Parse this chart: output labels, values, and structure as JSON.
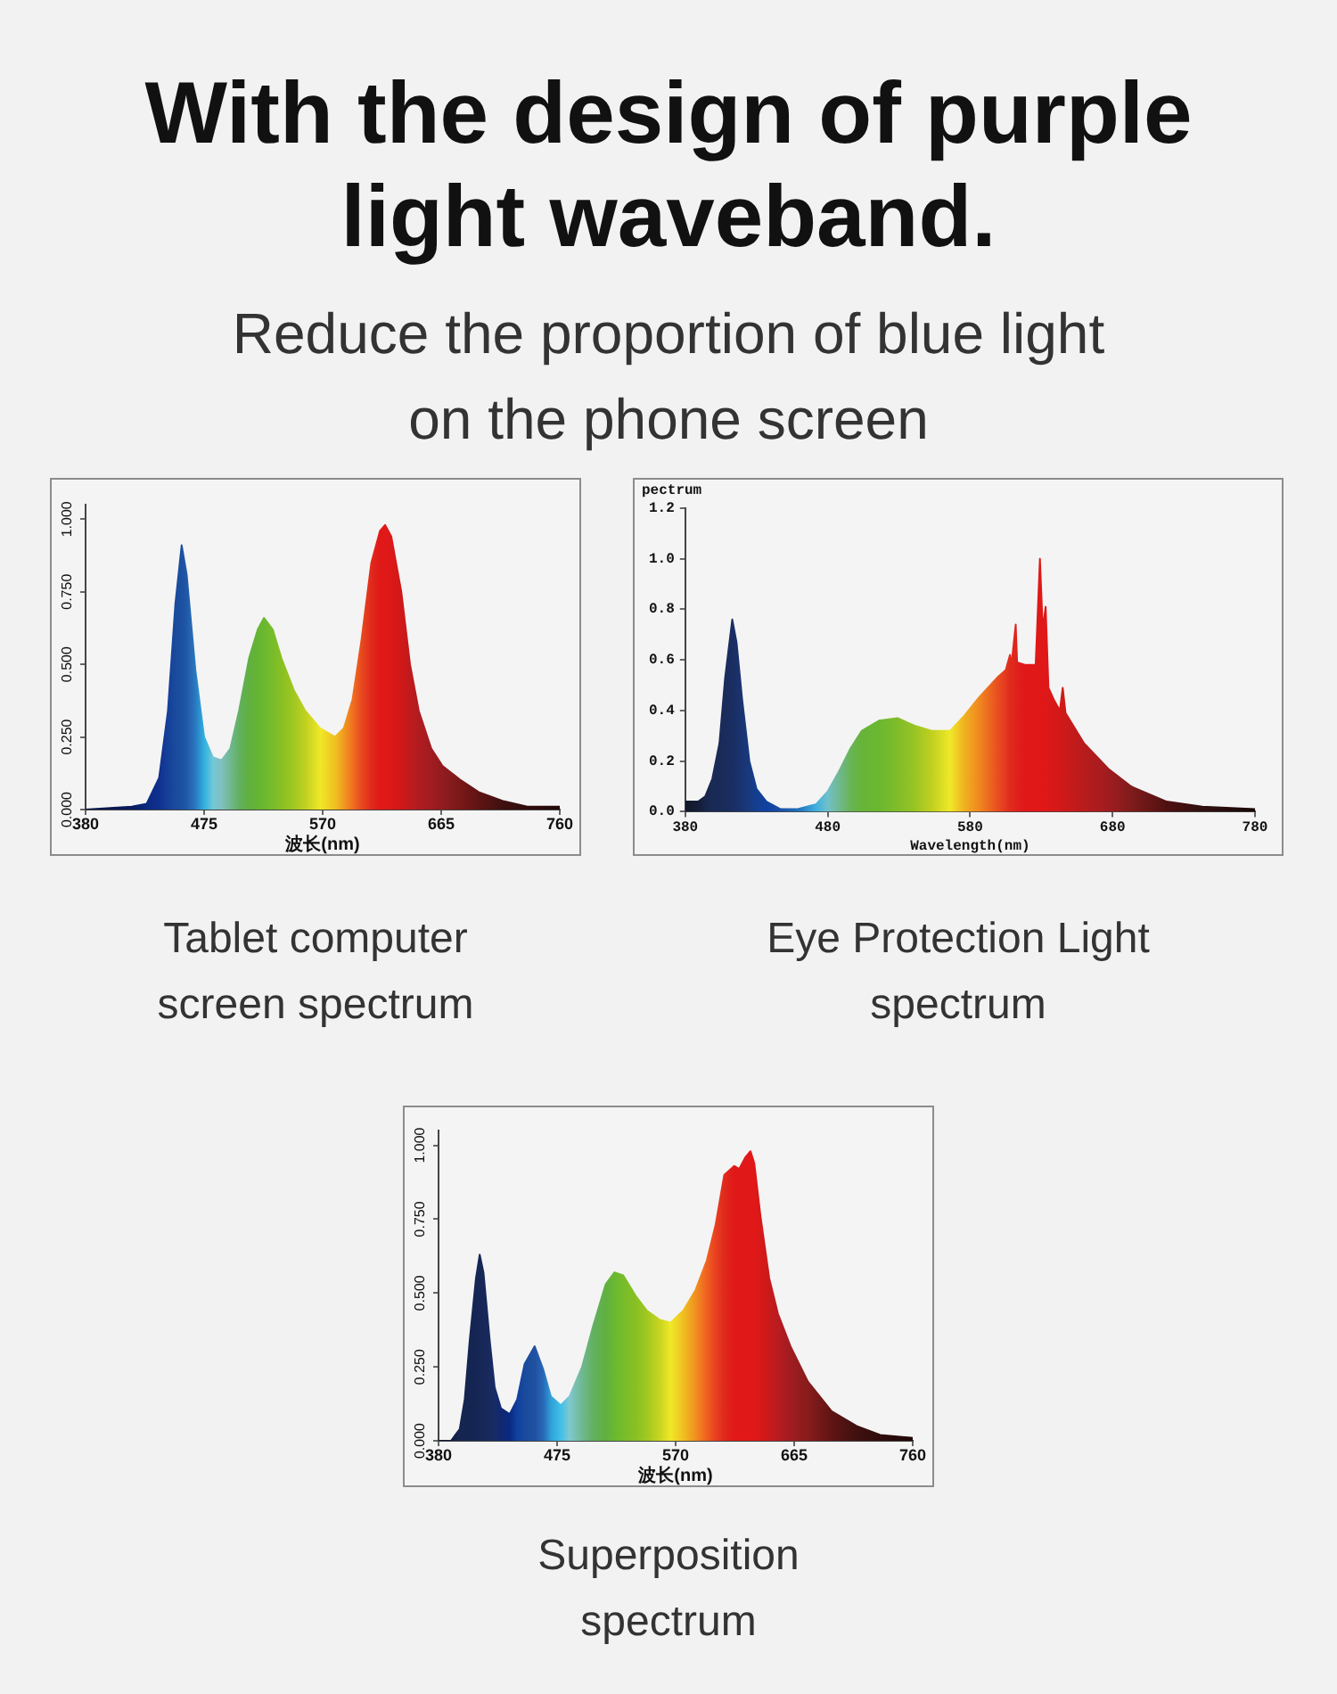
{
  "chart_data": [
    {
      "type": "other",
      "title": "With the design of purple light waveband.",
      "subtitle": "Reduce the proportion of blue light on the phone screen"
    },
    {
      "type": "area",
      "title": "Tablet computer screen spectrum",
      "xlabel": "波长(nm)",
      "x": [
        380,
        417,
        429,
        439,
        446,
        452,
        457,
        461,
        468,
        475,
        482,
        489,
        496,
        503,
        511,
        518,
        523,
        530,
        537,
        547,
        556,
        568,
        580,
        587,
        594,
        601,
        609,
        616,
        620,
        625,
        633,
        640,
        647,
        657,
        666,
        681,
        695,
        714,
        734,
        760
      ],
      "values": [
        0,
        0.01,
        0.02,
        0.11,
        0.34,
        0.71,
        0.91,
        0.81,
        0.48,
        0.25,
        0.18,
        0.17,
        0.21,
        0.34,
        0.52,
        0.62,
        0.66,
        0.62,
        0.52,
        0.41,
        0.34,
        0.28,
        0.25,
        0.28,
        0.38,
        0.58,
        0.85,
        0.96,
        0.98,
        0.94,
        0.75,
        0.5,
        0.34,
        0.21,
        0.15,
        0.1,
        0.06,
        0.03,
        0.01,
        0.01
      ],
      "colors": [
        "#0a1540",
        "#0a1a60",
        "#0a2a80",
        "#10308f",
        "#15409a",
        "#1a4a9c",
        "#1c50a0",
        "#2058a8",
        "#2a78c0",
        "#30b0e0",
        "#70c8d8",
        "#80c0c0",
        "#70b890",
        "#62b060",
        "#60b040",
        "#66b432",
        "#6ab830",
        "#78bc2a",
        "#88c024",
        "#a0c820",
        "#c0d020",
        "#f0e828",
        "#f0c020",
        "#f09a20",
        "#f07020",
        "#e84a20",
        "#e02a1c",
        "#e01818",
        "#e01818",
        "#dc1818",
        "#d01818",
        "#c01a1c",
        "#b01c20",
        "#a01c20",
        "#901c20",
        "#781818",
        "#601414",
        "#401010",
        "#300c0c",
        "#200808"
      ],
      "xlim": [
        380,
        760
      ],
      "xticks": [
        380,
        475,
        570,
        665,
        760
      ],
      "ylim": [
        0,
        1.05
      ],
      "yticks": [
        {
          "value": 0,
          "label": "0.000"
        },
        {
          "value": 0.25,
          "label": "0.250"
        },
        {
          "value": 0.5,
          "label": "0.500"
        },
        {
          "value": 0.75,
          "label": "0.750"
        },
        {
          "value": 1,
          "label": "1.000"
        }
      ]
    },
    {
      "type": "area",
      "title": "Eye Protection Light spectrum",
      "xlabel": "Wavelength(nm)",
      "ylabel": "pectrum",
      "x": [
        380,
        389,
        394,
        399,
        404,
        408,
        413,
        416,
        420,
        425,
        430,
        437,
        447,
        459,
        472,
        480,
        488,
        496,
        504,
        516,
        529,
        541,
        553,
        566,
        576,
        586,
        599,
        605,
        608,
        609,
        612,
        613,
        619,
        626,
        627,
        629,
        631,
        633,
        635,
        639,
        643,
        645,
        647,
        660,
        677,
        693,
        718,
        743,
        780
      ],
      "values": [
        0.04,
        0.04,
        0.06,
        0.13,
        0.27,
        0.53,
        0.76,
        0.67,
        0.44,
        0.2,
        0.09,
        0.04,
        0.01,
        0.01,
        0.03,
        0.08,
        0.16,
        0.25,
        0.32,
        0.36,
        0.37,
        0.34,
        0.32,
        0.32,
        0.38,
        0.45,
        0.53,
        0.56,
        0.62,
        0.58,
        0.74,
        0.59,
        0.58,
        0.58,
        0.72,
        1.0,
        0.72,
        0.81,
        0.49,
        0.44,
        0.4,
        0.49,
        0.39,
        0.27,
        0.17,
        0.1,
        0.04,
        0.02,
        0.01
      ],
      "colors": [
        "#101828",
        "#141e38",
        "#18244a",
        "#1a2a55",
        "#1a2a58",
        "#1a2c5c",
        "#1a2e62",
        "#1a3068",
        "#1a3472",
        "#183a80",
        "#143e90",
        "#1040a0",
        "#1a50a8",
        "#2070b8",
        "#40b0e0",
        "#70c0c8",
        "#70b890",
        "#68b458",
        "#66b438",
        "#6ab830",
        "#80bc2a",
        "#98c424",
        "#c0d020",
        "#f0e828",
        "#f0b020",
        "#f08a20",
        "#e85020",
        "#e43820",
        "#e02a1c",
        "#e02a1c",
        "#e0241c",
        "#e0201c",
        "#e01818",
        "#e01818",
        "#e01818",
        "#e01818",
        "#e01818",
        "#e01818",
        "#dc1818",
        "#d81818",
        "#d41818",
        "#d01818",
        "#cc1a1a",
        "#b81c1c",
        "#a01c20",
        "#801c1c",
        "#501010",
        "#301010",
        "#180808"
      ],
      "xlim": [
        380,
        780
      ],
      "xticks": [
        380,
        480,
        580,
        680,
        780
      ],
      "ylim": [
        0,
        1.2
      ],
      "yticks": [
        {
          "value": 0,
          "label": "0.0"
        },
        0.2,
        0.4,
        0.6,
        0.8,
        {
          "value": 1,
          "label": "1.0"
        },
        1.2
      ]
    },
    {
      "type": "area",
      "title": "Superposition spectrum",
      "xlabel": "波长(nm)",
      "x": [
        380,
        390,
        397,
        401,
        405,
        410,
        413,
        416,
        421,
        425,
        430,
        437,
        443,
        449,
        457,
        464,
        470,
        478,
        485,
        495,
        504,
        514,
        521,
        528,
        538,
        547,
        557,
        566,
        576,
        586,
        595,
        602,
        609,
        617,
        621,
        626,
        630,
        633,
        638,
        645,
        652,
        662,
        676,
        695,
        715,
        734,
        760
      ],
      "values": [
        0,
        0,
        0.04,
        0.14,
        0.34,
        0.55,
        0.63,
        0.57,
        0.34,
        0.18,
        0.11,
        0.09,
        0.14,
        0.26,
        0.32,
        0.24,
        0.15,
        0.12,
        0.15,
        0.25,
        0.39,
        0.53,
        0.57,
        0.56,
        0.49,
        0.44,
        0.41,
        0.4,
        0.44,
        0.51,
        0.61,
        0.73,
        0.9,
        0.93,
        0.92,
        0.96,
        0.98,
        0.94,
        0.76,
        0.55,
        0.43,
        0.32,
        0.2,
        0.1,
        0.05,
        0.02,
        0.01
      ],
      "colors": [
        "#0a1530",
        "#101e40",
        "#152550",
        "#152550",
        "#152552",
        "#162654",
        "#162656",
        "#172858",
        "#182a5e",
        "#182c66",
        "#102870",
        "#0a2a80",
        "#1040a0",
        "#1a4a9c",
        "#2050a0",
        "#2868b8",
        "#30a0d8",
        "#40c0e8",
        "#80c8d0",
        "#70b890",
        "#62b060",
        "#60b040",
        "#6ab830",
        "#78bc2a",
        "#88c024",
        "#a0c820",
        "#c8d420",
        "#f0e828",
        "#f0c020",
        "#f09020",
        "#f06020",
        "#e84020",
        "#e02a1c",
        "#e01818",
        "#e01818",
        "#e01818",
        "#e01818",
        "#e01818",
        "#d81818",
        "#c81a1c",
        "#b81c20",
        "#a01c20",
        "#881c1c",
        "#601414",
        "#401010",
        "#300c0c",
        "#200808"
      ],
      "xlim": [
        380,
        760
      ],
      "xticks": [
        380,
        475,
        570,
        665,
        760
      ],
      "ylim": [
        0,
        1.05
      ],
      "yticks": [
        {
          "value": 0,
          "label": "0.000"
        },
        {
          "value": 0.25,
          "label": "0.250"
        },
        {
          "value": 0.5,
          "label": "0.500"
        },
        {
          "value": 0.75,
          "label": "0.750"
        },
        {
          "value": 1,
          "label": "1.000"
        }
      ]
    }
  ]
}
